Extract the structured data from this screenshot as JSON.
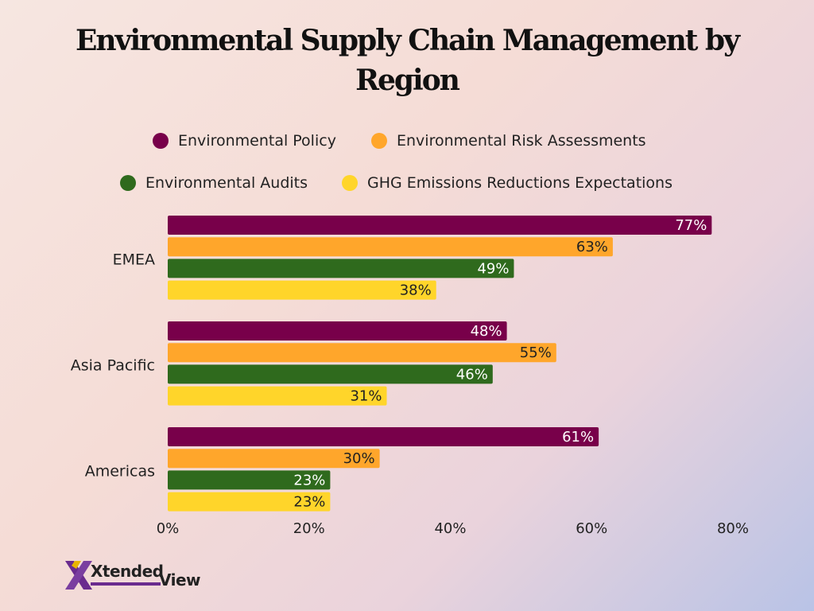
{
  "chart_data": {
    "type": "bar",
    "orientation": "horizontal",
    "title": "Environmental Supply Chain Management by Region",
    "categories": [
      "EMEA",
      "Asia Pacific",
      "Americas"
    ],
    "series": [
      {
        "name": "Environmental Policy",
        "values": [
          77,
          48,
          61
        ],
        "color": "#78004a",
        "labels": [
          "77%",
          "48%",
          "61%"
        ]
      },
      {
        "name": "Environmental Risk Assessments",
        "values": [
          63,
          55,
          30
        ],
        "color": "#ffa62b",
        "labels": [
          "63%",
          "55%",
          "30%"
        ]
      },
      {
        "name": "Environmental Audits",
        "values": [
          49,
          46,
          23
        ],
        "color": "#2f6a1d",
        "labels": [
          "49%",
          "46%",
          "23%"
        ]
      },
      {
        "name": "GHG Emissions Reductions Expectations",
        "values": [
          38,
          31,
          23
        ],
        "color": "#ffd52a",
        "labels": [
          "38%",
          "31%",
          "23%"
        ]
      }
    ],
    "xlim": [
      0,
      80
    ],
    "xticks": [
      "0%",
      "20%",
      "40%",
      "60%",
      "80%"
    ],
    "legend_position": "top",
    "grid": false
  },
  "logo": {
    "part1": "Xtended",
    "part2": "View"
  }
}
